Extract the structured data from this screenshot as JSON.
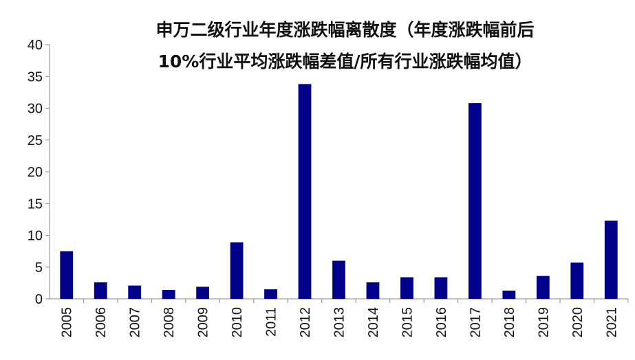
{
  "chart_data": {
    "type": "bar",
    "title_line1": "申万二级行业年度涨跌幅离散度（年度涨跌幅前后",
    "title_line2": "10%行业平均涨跌幅差值/所有行业涨跌幅均值）",
    "categories": [
      "2005",
      "2006",
      "2007",
      "2008",
      "2009",
      "2010",
      "2011",
      "2012",
      "2013",
      "2014",
      "2015",
      "2016",
      "2017",
      "2018",
      "2019",
      "2020",
      "2021"
    ],
    "values": [
      7.5,
      2.6,
      2.1,
      1.4,
      1.9,
      8.9,
      1.5,
      33.8,
      6.0,
      2.6,
      3.4,
      3.4,
      30.8,
      1.3,
      3.6,
      5.7,
      12.3
    ],
    "ylim": [
      0,
      40
    ],
    "yticks": [
      0,
      5,
      10,
      15,
      20,
      25,
      30,
      35,
      40
    ],
    "xlabel": "",
    "ylabel": "",
    "bar_color": "#00008B",
    "grid": false,
    "legend": "none"
  }
}
